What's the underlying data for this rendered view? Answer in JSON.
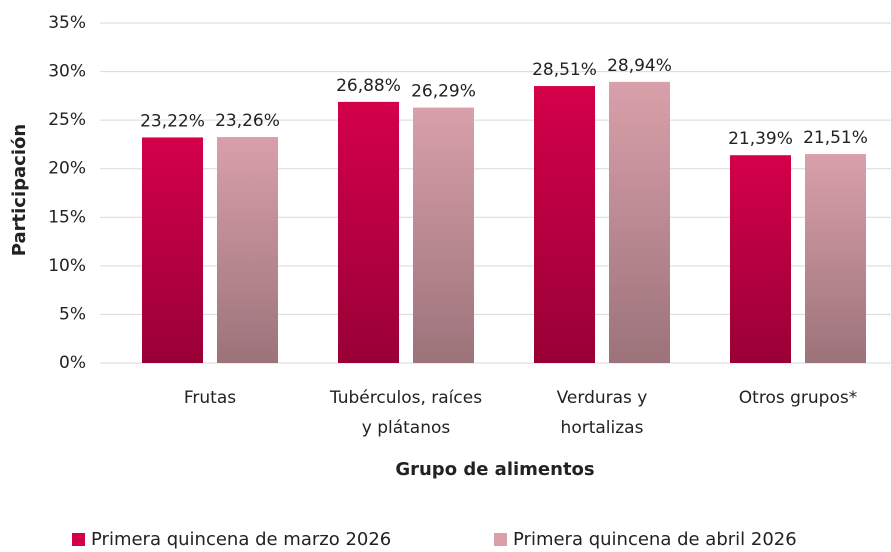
{
  "chart_data": {
    "type": "bar",
    "categories": [
      "Frutas",
      "Tubérculos, raíces\ny plátanos",
      "Verduras y\nhortalizas",
      "Otros grupos*"
    ],
    "series": [
      {
        "name": "Primera quincena de marzo 2026",
        "color": "#d4004a",
        "values": [
          23.22,
          26.88,
          28.51,
          21.39
        ],
        "value_labels": [
          "23,22%",
          "26,88%",
          "28,51%",
          "21,39%"
        ]
      },
      {
        "name": "Primera quincena de abril 2026",
        "color": "#d9a0aa",
        "values": [
          23.26,
          26.29,
          28.94,
          21.51
        ],
        "value_labels": [
          "23,26%",
          "26,29%",
          "28,94%",
          "21,51%"
        ]
      }
    ],
    "ylabel": "Participación",
    "xlabel": "Grupo de alimentos",
    "ylim": [
      0,
      35
    ],
    "yticks": [
      {
        "value": 0,
        "label": "0%"
      },
      {
        "value": 5,
        "label": "5%"
      },
      {
        "value": 10,
        "label": "10%"
      },
      {
        "value": 15,
        "label": "15%"
      },
      {
        "value": 20,
        "label": "20%"
      },
      {
        "value": 25,
        "label": "25%"
      },
      {
        "value": 30,
        "label": "30%"
      },
      {
        "value": 35,
        "label": "35%"
      }
    ],
    "grid": true,
    "legend": "bottom"
  }
}
